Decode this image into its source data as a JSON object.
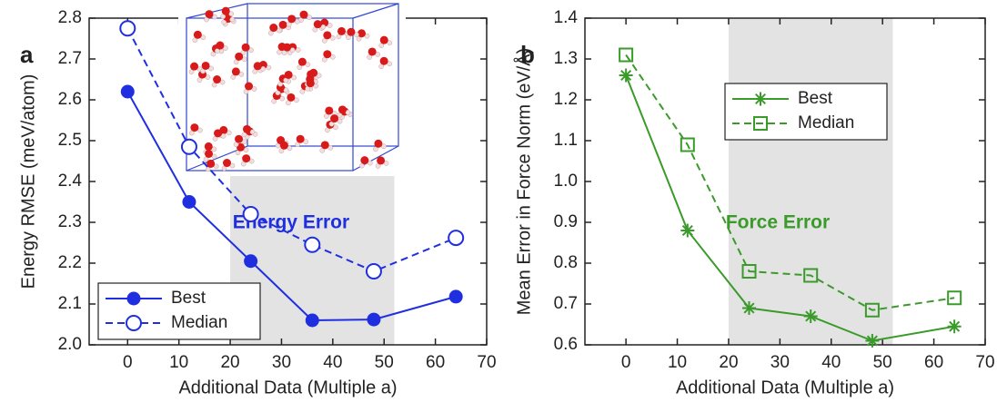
{
  "chart_data": [
    {
      "type": "line",
      "panel_label": "a",
      "annotation": "Energy Error",
      "x_label": "Additional Data (Multiple a)",
      "y_label": "Energy RMSE (meV/atom)",
      "x": [
        0,
        12,
        24,
        36,
        48,
        64
      ],
      "series": [
        {
          "name": "Best",
          "color": "#1f2fe0",
          "marker": "filled-circle",
          "linestyle": "solid",
          "values": [
            2.62,
            2.35,
            2.205,
            2.06,
            2.062,
            2.118
          ]
        },
        {
          "name": "Median",
          "color": "#1f2fe0",
          "marker": "open-circle",
          "linestyle": "dashed",
          "values": [
            2.775,
            2.485,
            2.32,
            2.245,
            2.18,
            2.262
          ]
        }
      ],
      "xlim": [
        -7.5,
        70
      ],
      "xticks": [
        0,
        10,
        20,
        30,
        40,
        50,
        60,
        70
      ],
      "ylim": [
        2.0,
        2.8
      ],
      "yticks": [
        {
          "value": 2.0,
          "label": "2.0"
        },
        2.1,
        2.2,
        2.3,
        2.4,
        2.5,
        2.6,
        2.7,
        2.8
      ],
      "shade": [
        20,
        52
      ],
      "legend": "lower left"
    },
    {
      "type": "line",
      "panel_label": "b",
      "annotation": "Force Error",
      "x_label": "Additional Data (Multiple a)",
      "y_label": "Mean Error in Force Norm (eV/Å)",
      "x": [
        0,
        12,
        24,
        36,
        48,
        64
      ],
      "series": [
        {
          "name": "Best",
          "color": "#3a9a2a",
          "marker": "asterisk",
          "linestyle": "solid",
          "values": [
            1.26,
            0.88,
            0.69,
            0.67,
            0.61,
            0.645
          ]
        },
        {
          "name": "Median",
          "color": "#3a9a2a",
          "marker": "open-square",
          "linestyle": "dashed",
          "values": [
            1.31,
            1.09,
            0.78,
            0.77,
            0.685,
            0.715
          ]
        }
      ],
      "xlim": [
        -8,
        70
      ],
      "xticks": [
        0,
        10,
        20,
        30,
        40,
        50,
        60,
        70
      ],
      "ylim": [
        0.6,
        1.4
      ],
      "yticks": [
        0.6,
        0.7,
        0.8,
        0.9,
        {
          "value": 1.0,
          "label": "1.0"
        },
        1.1,
        1.2,
        1.3,
        1.4
      ],
      "shade": [
        20,
        52
      ],
      "legend": "upper left"
    }
  ]
}
